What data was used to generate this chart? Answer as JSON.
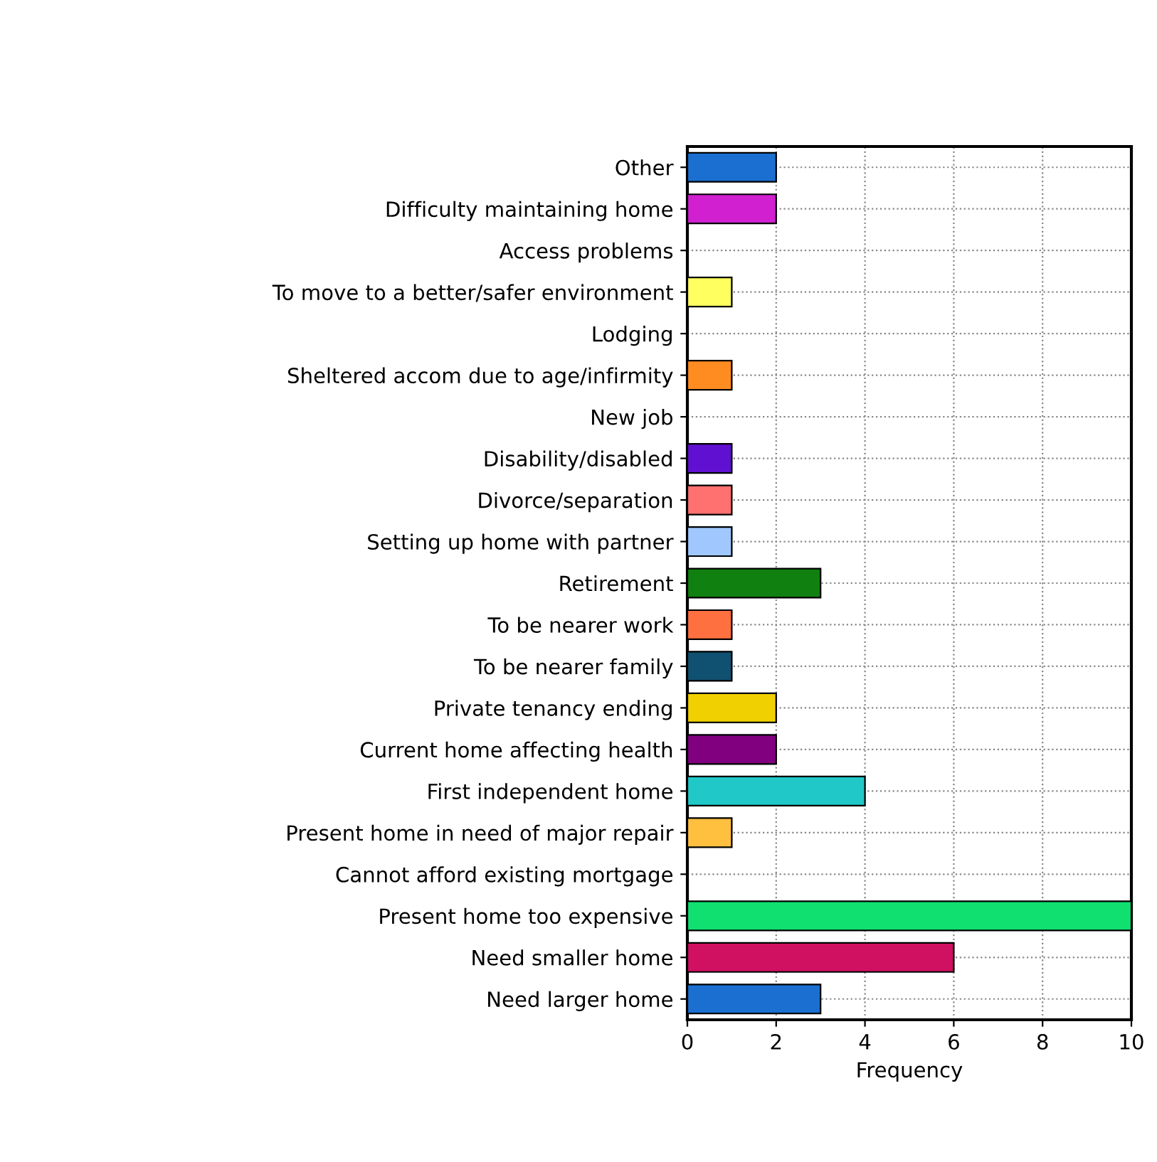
{
  "chart_data": {
    "type": "bar",
    "orientation": "horizontal",
    "xlabel": "Frequency",
    "categories": [
      "Other",
      "Difficulty maintaining home",
      "Access problems",
      "To move to a better/safer environment",
      "Lodging",
      "Sheltered accom due to age/infirmity",
      "New job",
      "Disability/disabled",
      "Divorce/separation",
      "Setting up home with partner",
      "Retirement",
      "To be nearer work",
      "To be nearer family",
      "Private tenancy ending",
      "Current home affecting health",
      "First independent home",
      "Present home in need of major repair",
      "Cannot afford existing mortgage",
      "Present home too expensive",
      "Need smaller home",
      "Need larger home"
    ],
    "values": [
      2,
      2,
      0,
      1,
      0,
      1,
      0,
      1,
      1,
      1,
      3,
      1,
      1,
      2,
      2,
      4,
      1,
      0,
      10,
      6,
      3
    ],
    "colors": [
      "#1a6fd0",
      "#d020d0",
      null,
      "#ffff60",
      null,
      "#ff8c20",
      null,
      "#6010d0",
      "#ff7070",
      "#a0c8ff",
      "#108010",
      "#ff7040",
      "#105070",
      "#f0d000",
      "#800080",
      "#20c8c8",
      "#ffc040",
      null,
      "#10e070",
      "#d01060",
      "#1a6fd0"
    ],
    "xlim": [
      0,
      10
    ],
    "xticks": [
      0,
      2,
      4,
      6,
      8,
      10
    ],
    "grid": true
  }
}
